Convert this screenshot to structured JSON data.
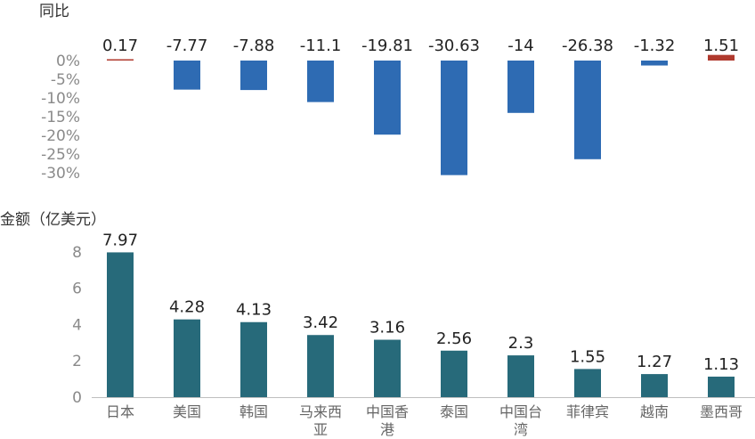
{
  "chart_data": [
    {
      "type": "bar",
      "title": "",
      "ylabel": "同比",
      "xlabel": "",
      "categories": [
        "日本",
        "美国",
        "韩国",
        "马来西亚",
        "中国香港",
        "泰国",
        "中国台湾",
        "菲律宾",
        "越南",
        "墨西哥"
      ],
      "values": [
        0.17,
        -7.77,
        -7.88,
        -11.1,
        -19.81,
        -30.63,
        -14,
        -26.38,
        -1.32,
        1.51
      ],
      "value_labels": [
        "0.17",
        "-7.77",
        "-7.88",
        "-11.1",
        "-19.81",
        "-30.63",
        "-14",
        "-26.38",
        "-1.32",
        "1.51"
      ],
      "yticks": [
        "0%",
        "-5%",
        "-10%",
        "-15%",
        "-20%",
        "-25%",
        "-30%"
      ],
      "ylim": [
        -31,
        1.6
      ],
      "grid": false,
      "colors": {
        "positive": "#b03a2e",
        "negative": "#2e6bb3"
      }
    },
    {
      "type": "bar",
      "title": "",
      "ylabel": "金额（亿美元）",
      "xlabel": "",
      "categories": [
        "日本",
        "美国",
        "韩国",
        "马来西亚",
        "中国香港",
        "泰国",
        "中国台湾",
        "菲律宾",
        "越南",
        "墨西哥"
      ],
      "category_lines": [
        [
          "日本"
        ],
        [
          "美国"
        ],
        [
          "韩国"
        ],
        [
          "马来西",
          "亚"
        ],
        [
          "中国香",
          "港"
        ],
        [
          "泰国"
        ],
        [
          "中国台",
          "湾"
        ],
        [
          "菲律宾"
        ],
        [
          "越南"
        ],
        [
          "墨西哥"
        ]
      ],
      "values": [
        7.97,
        4.28,
        4.13,
        3.42,
        3.16,
        2.56,
        2.3,
        1.55,
        1.27,
        1.13
      ],
      "value_labels": [
        "7.97",
        "4.28",
        "4.13",
        "3.42",
        "3.16",
        "2.56",
        "2.3",
        "1.55",
        "1.27",
        "1.13"
      ],
      "yticks": [
        "8",
        "6",
        "4",
        "2",
        "0"
      ],
      "ylim": [
        0,
        8
      ],
      "grid": false,
      "colors": {
        "bar": "#276a7a",
        "axis": "#bfbfbf"
      }
    }
  ]
}
